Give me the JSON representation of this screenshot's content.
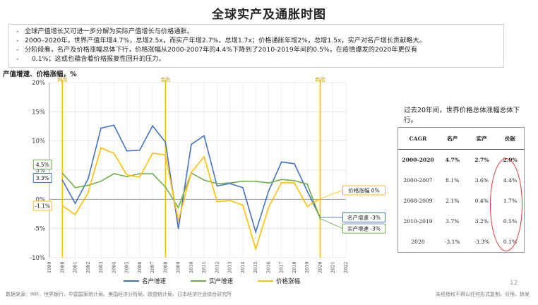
{
  "title": "全球实产及通胀时图",
  "bullets": [
    "全球产值增长又可进一步分解为实际产值增长与价格通胀。",
    "2000–2020年，世界产值年增4.7%，总增2.5x，而实产年增2.7%，总增1.7x；价格通胀年增2%，总增1.5x，实产对名产增长贡献略大。",
    "分阶段看，名产及价格涨幅总体下行，价格涨幅从2000-2007年的4.4%下降到了2010-2019年间的0.5%，在疫情爆发的2020年更仅有",
    "0.1%；这或也蕴含着价格报复性回升的压力。"
  ],
  "unit_label": "产值增速、价格涨幅，%",
  "colors": {
    "nominal": "#4472c4",
    "real": "#70ad47",
    "price": "#ffc000",
    "event": "#ffc000",
    "zero": "#999999",
    "grid": "#e2e2e2"
  },
  "chart_data": {
    "type": "line",
    "x": [
      1999,
      2000,
      2001,
      2002,
      2003,
      2004,
      2005,
      2006,
      2007,
      2008,
      2009,
      2010,
      2011,
      2012,
      2013,
      2014,
      2015,
      2016,
      2017,
      2018,
      2019,
      2020,
      2021,
      2022
    ],
    "xlim": [
      1999,
      2022
    ],
    "ylim": [
      -10,
      20
    ],
    "yticks": [
      "-10%",
      "-5%",
      "0%",
      "5%",
      "10%",
      "15%",
      "20%"
    ],
    "yticks_values": [
      -10,
      -5,
      0,
      5,
      10,
      15,
      20
    ],
    "grid": true,
    "series": [
      {
        "name": "名产增速",
        "color": "#4472c4",
        "x": [
          2000,
          2001,
          2002,
          2003,
          2004,
          2005,
          2006,
          2007,
          2008,
          2009,
          2010,
          2011,
          2012,
          2013,
          2014,
          2015,
          2016,
          2017,
          2018,
          2019,
          2020
        ],
        "values": [
          3.3,
          -0.7,
          3.5,
          12.2,
          12.7,
          8.3,
          8.4,
          12.6,
          9.8,
          -5.0,
          9.4,
          10.9,
          2.3,
          2.7,
          2.0,
          -5.6,
          1.4,
          6.4,
          6.1,
          1.4,
          -3.1
        ]
      },
      {
        "name": "实产增速",
        "color": "#70ad47",
        "x": [
          2000,
          2001,
          2002,
          2003,
          2004,
          2005,
          2006,
          2007,
          2008,
          2009,
          2010,
          2011,
          2012,
          2013,
          2014,
          2015,
          2016,
          2017,
          2018,
          2019,
          2020
        ],
        "values": [
          4.5,
          2.0,
          2.4,
          3.1,
          4.4,
          3.9,
          4.4,
          4.4,
          2.1,
          -1.4,
          4.5,
          3.3,
          2.7,
          2.8,
          3.1,
          3.1,
          2.8,
          3.4,
          3.2,
          2.6,
          -3.3
        ]
      },
      {
        "name": "价格涨幅",
        "color": "#ffc000",
        "x": [
          2000,
          2001,
          2002,
          2003,
          2004,
          2005,
          2006,
          2007,
          2008,
          2009,
          2010,
          2011,
          2012,
          2013,
          2014,
          2015,
          2016,
          2017,
          2018,
          2019,
          2020
        ],
        "values": [
          -1.1,
          -2.6,
          1.1,
          8.8,
          7.9,
          4.2,
          3.8,
          7.9,
          7.6,
          -3.7,
          4.6,
          7.3,
          -0.4,
          -0.2,
          -1.0,
          -8.5,
          -1.4,
          2.9,
          2.8,
          -1.2,
          0.1
        ]
      }
    ],
    "events": [
      {
        "x": 2000,
        "label": "网泡"
      },
      {
        "x": 2008,
        "label": "金危"
      },
      {
        "x": 2020,
        "label": "新冠"
      }
    ],
    "annotations": [
      {
        "x": 2000,
        "y": 4.5,
        "text": "4.5%",
        "border": "#70ad47"
      },
      {
        "x": 2000,
        "y": 3.3,
        "text": "3.3%",
        "border": "#4472c4"
      },
      {
        "x": 2000,
        "y": -1.1,
        "text": "-1.1%",
        "border": "#ffc000"
      },
      {
        "x": 2020,
        "y": 0.1,
        "text": "价格涨幅 0%",
        "border": "#ffc000"
      },
      {
        "x": 2020,
        "y": -3.1,
        "text": "名产增速 -3%",
        "border": "#4472c4"
      },
      {
        "x": 2020,
        "y": -3.3,
        "text": "实产增速 -3%",
        "border": "#70ad47"
      }
    ],
    "legend": {
      "placement": "bottom",
      "items": [
        "名产增速",
        "实产增速",
        "价格涨幅"
      ]
    }
  },
  "side_note": "过去20年间，世界价格总体涨幅总体下行。",
  "cagr_table": {
    "headers": [
      "CAGR",
      "名产",
      "实产",
      "价胀"
    ],
    "rows": [
      [
        "2000-2020",
        "4.7%",
        "2.7%",
        "2.0%"
      ],
      [
        "2000-2007",
        "8.1%",
        "3.6%",
        "4.4%"
      ],
      [
        "2008-2009",
        "2.1%",
        "0.4%",
        "1.7%"
      ],
      [
        "2010-2019",
        "3.7%",
        "3.2%",
        "0.5%"
      ],
      [
        "2020",
        "-3.1%",
        "-3.3%",
        "0.1%"
      ]
    ]
  },
  "source": "数据来源：IMF、世界银行、中国国家统计局、美国经济分析局、欧盟统计局、日本经济社会综合研究所",
  "right_note": "未经授权不得以任何形式复制、引用、转发",
  "page_number": "12"
}
